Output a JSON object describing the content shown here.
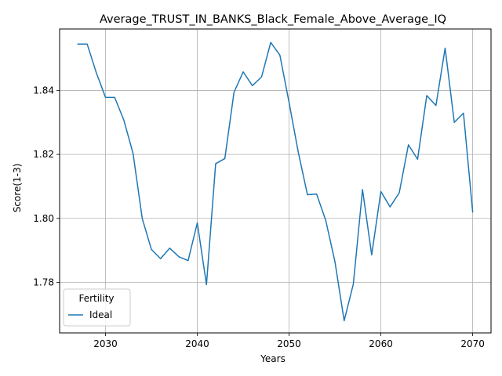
{
  "chart_data": {
    "type": "line",
    "title": "Average_TRUST_IN_BANKS_Black_Female_Above_Average_IQ",
    "xlabel": "Years",
    "ylabel": "Score(1-3)",
    "xlim": [
      2025,
      2072
    ],
    "ylim": [
      1.7642,
      1.8592
    ],
    "xticks": [
      2030,
      2040,
      2050,
      2060,
      2070
    ],
    "yticks": [
      1.78,
      1.8,
      1.82,
      1.84
    ],
    "grid": true,
    "legend": {
      "title": "Fertility",
      "placement": "lower-left"
    },
    "line_color": "#1f77b4",
    "series": [
      {
        "name": "Ideal",
        "x": [
          2027,
          2028,
          2029,
          2030,
          2031,
          2032,
          2033,
          2034,
          2035,
          2036,
          2037,
          2038,
          2039,
          2040,
          2041,
          2042,
          2043,
          2044,
          2045,
          2046,
          2047,
          2048,
          2049,
          2050,
          2051,
          2052,
          2053,
          2054,
          2055,
          2056,
          2057,
          2058,
          2059,
          2060,
          2061,
          2062,
          2063,
          2064,
          2065,
          2066,
          2067,
          2068,
          2069,
          2070
        ],
        "values": [
          1.8545,
          1.8545,
          1.8455,
          1.8378,
          1.8378,
          1.8307,
          1.8203,
          1.8,
          1.7903,
          1.7874,
          1.7907,
          1.788,
          1.7868,
          1.7986,
          1.7793,
          1.8171,
          1.8187,
          1.8394,
          1.8458,
          1.8415,
          1.8442,
          1.855,
          1.851,
          1.8362,
          1.8207,
          1.8074,
          1.8076,
          1.7993,
          1.7864,
          1.768,
          1.7795,
          1.809,
          1.7886,
          1.8084,
          1.8036,
          1.808,
          1.823,
          1.8185,
          1.8384,
          1.8353,
          1.8532,
          1.83,
          1.8329,
          1.802
        ]
      }
    ]
  }
}
